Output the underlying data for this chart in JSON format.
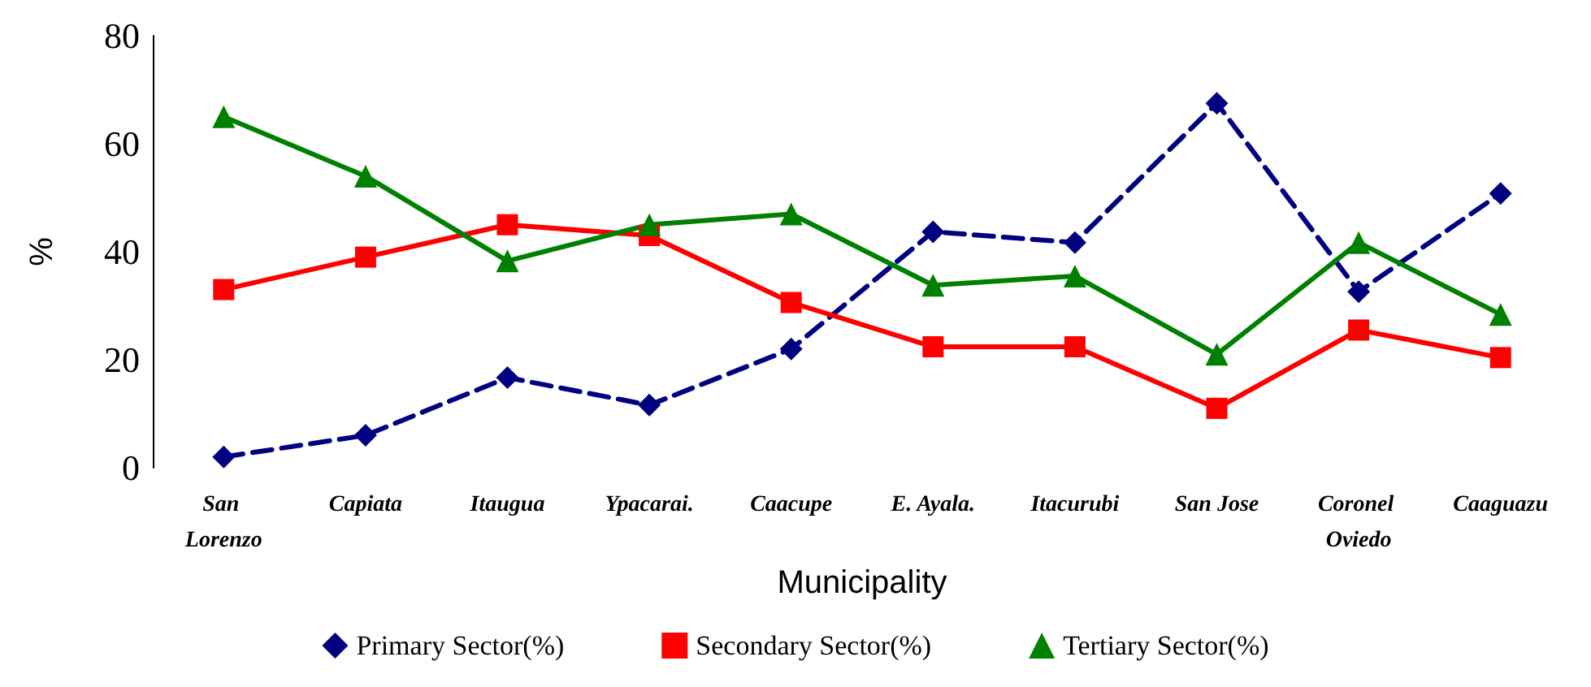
{
  "chart_data": {
    "type": "line",
    "xlabel": "Municipality",
    "ylabel": "%",
    "categories": [
      "San Lorenzo",
      "Capiata",
      "Itaugua",
      "Ypacarai.",
      "Caacupe",
      "E. Ayala.",
      "Itacurubi",
      "San Jose",
      "Coronel Oviedo",
      "Caaguazu"
    ],
    "series": [
      {
        "name": "Primary Sector(%)",
        "color": "#000080",
        "marker": "diamond",
        "line_style": "dashed",
        "values": [
          2,
          6,
          16.7,
          11.6,
          22,
          43.7,
          41.7,
          67.5,
          32.6,
          50.8
        ]
      },
      {
        "name": "Secondary Sector(%)",
        "color": "#ff0000",
        "marker": "square",
        "line_style": "solid",
        "values": [
          33,
          39,
          45,
          43,
          30.6,
          22.4,
          22.4,
          11,
          25.5,
          20.4
        ]
      },
      {
        "name": "Tertiary Sector(%)",
        "color": "#008000",
        "marker": "triangle",
        "line_style": "solid",
        "values": [
          65,
          54,
          38.3,
          45,
          47,
          33.8,
          35.5,
          21,
          41.7,
          28.4
        ]
      }
    ],
    "ylim": [
      0,
      80
    ],
    "yticks": [
      0,
      20,
      40,
      60,
      80
    ],
    "grid": false,
    "legend": "bottom"
  }
}
